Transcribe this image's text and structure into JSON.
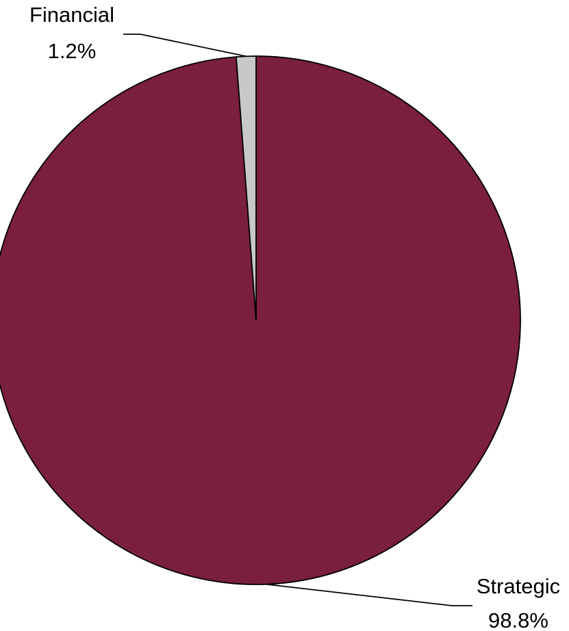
{
  "chart_data": {
    "type": "pie",
    "title": "",
    "slices": [
      {
        "name": "Strategic",
        "value": 98.8,
        "value_label": "98.8%",
        "color": "#7a1f3d"
      },
      {
        "name": "Financial",
        "value": 1.2,
        "value_label": "1.2%",
        "color": "#c8c8c8"
      }
    ],
    "start_angle": "12 o'clock",
    "direction": "clockwise",
    "legend": "none",
    "labels": "outside with leader lines"
  }
}
